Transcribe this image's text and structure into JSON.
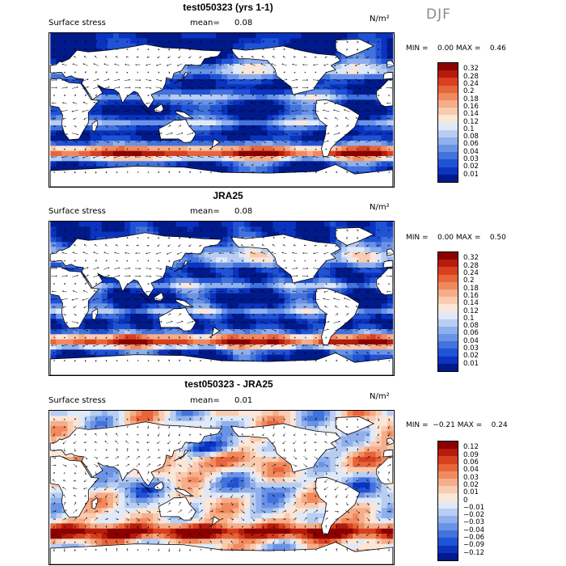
{
  "season": "DJF",
  "panels": [
    {
      "title": "test050323 (yrs 1-1)",
      "label": "Surface stress",
      "mean_label": "mean=",
      "mean_value": "0.08",
      "units": "N/m²",
      "stats": "MIN =    0.00 MAX =    0.46",
      "colorbar_labels": [
        "0.32",
        "0.28",
        "0.24",
        "0.2",
        "0.18",
        "0.16",
        "0.14",
        "0.12",
        "0.1",
        "0.08",
        "0.06",
        "0.04",
        "0.03",
        "0.02",
        "0.01"
      ],
      "colorbar_colors": [
        "#8b0000",
        "#b51c0c",
        "#d9401e",
        "#e8653c",
        "#f08a5e",
        "#f6ad88",
        "#f9cbb0",
        "#fbe6d8",
        "#dfe9f8",
        "#b8cdf2",
        "#8fb0ec",
        "#6a93e6",
        "#4272dc",
        "#2052d4",
        "#0a33bf",
        "#001a8a"
      ],
      "map_style": "model"
    },
    {
      "title": "JRA25",
      "label": "Surface stress",
      "mean_label": "mean=",
      "mean_value": "0.08",
      "units": "N/m²",
      "stats": "MIN =    0.00 MAX =    0.50",
      "colorbar_labels": [
        "0.32",
        "0.28",
        "0.24",
        "0.2",
        "0.18",
        "0.16",
        "0.14",
        "0.12",
        "0.1",
        "0.08",
        "0.06",
        "0.04",
        "0.03",
        "0.02",
        "0.01"
      ],
      "colorbar_colors": [
        "#8b0000",
        "#b51c0c",
        "#d9401e",
        "#e8653c",
        "#f08a5e",
        "#f6ad88",
        "#f9cbb0",
        "#fbe6d8",
        "#dfe9f8",
        "#b8cdf2",
        "#8fb0ec",
        "#6a93e6",
        "#4272dc",
        "#2052d4",
        "#0a33bf",
        "#001a8a"
      ],
      "map_style": "reanalysis"
    },
    {
      "title": "test050323 - JRA25",
      "label": "Surface stress",
      "mean_label": "mean=",
      "mean_value": "0.01",
      "units": "N/m²",
      "stats": "MIN =  −0.21 MAX =    0.24",
      "colorbar_labels": [
        "0.12",
        "0.09",
        "0.06",
        "0.04",
        "0.03",
        "0.02",
        "0.01",
        "0",
        "−0.01",
        "−0.02",
        "−0.03",
        "−0.04",
        "−0.06",
        "−0.09",
        "−0.12"
      ],
      "colorbar_colors": [
        "#8b0000",
        "#b51c0c",
        "#d9401e",
        "#e8653c",
        "#f08a5e",
        "#f6ad88",
        "#f9cbb0",
        "#fbe6d8",
        "#dfe9f8",
        "#b8cdf2",
        "#8fb0ec",
        "#6a93e6",
        "#4272dc",
        "#2052d4",
        "#0a33bf",
        "#001a8a"
      ],
      "map_style": "difference"
    }
  ]
}
